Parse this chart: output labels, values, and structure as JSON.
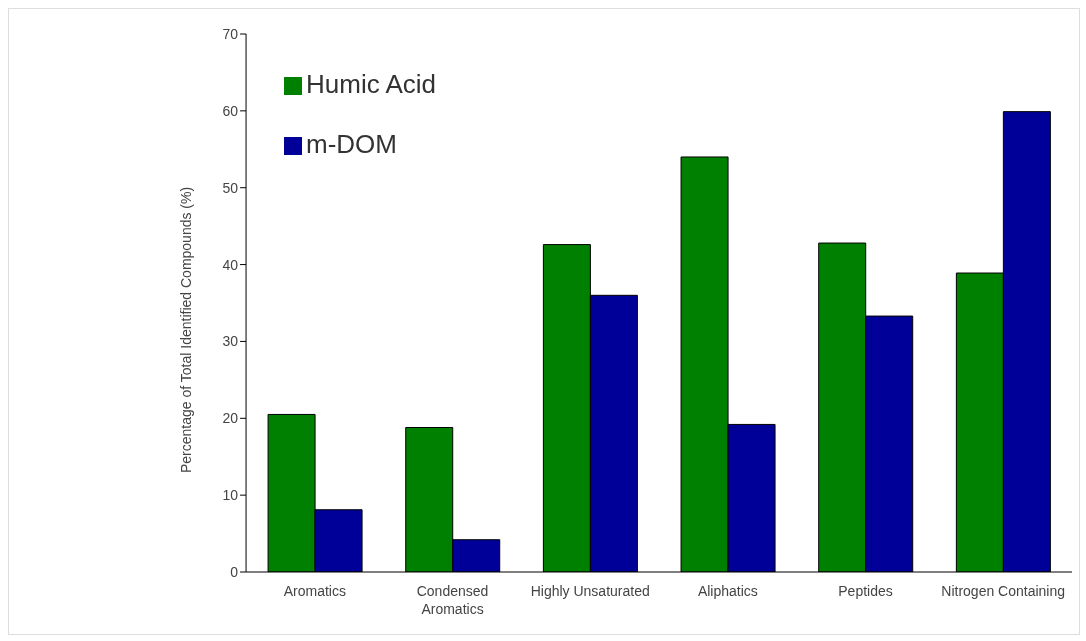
{
  "chart_data": {
    "type": "bar",
    "ylabel": "Percentage of Total Identified Compounds (%)",
    "categories": [
      "Aromatics",
      "Condensed Aromatics",
      "Highly Unsaturated",
      "Aliphatics",
      "Peptides",
      "Nitrogen Containing"
    ],
    "series": [
      {
        "name": "Humic Acid",
        "color": "#008000",
        "values": [
          20.5,
          18.8,
          42.6,
          54.0,
          42.8,
          38.9
        ]
      },
      {
        "name": "m-DOM",
        "color": "#000099",
        "values": [
          8.1,
          4.2,
          36.0,
          19.2,
          33.3,
          59.9
        ]
      }
    ],
    "ylim": [
      0,
      70
    ],
    "yticks": [
      0,
      10,
      20,
      30,
      40,
      50,
      60,
      70
    ],
    "grid": false,
    "legend": "top left"
  }
}
